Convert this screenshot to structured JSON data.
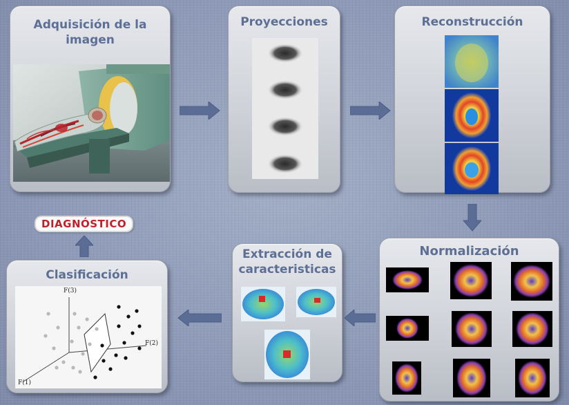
{
  "panels": {
    "adquisicion": {
      "title": "Adquisición de la imagen"
    },
    "proyecciones": {
      "title": "Proyecciones"
    },
    "reconstruccion": {
      "title": "Reconstrucción"
    },
    "normalizacion": {
      "title": "Normalización"
    },
    "extraccion": {
      "title_line1": "Extracción de",
      "title_line2": "caracteristicas"
    },
    "clasificacion": {
      "title": "Clasificación",
      "axis_labels": {
        "f3": "F(3)",
        "f2": "F(2)",
        "f1": "F(1)"
      }
    }
  },
  "diagnostico": {
    "label": "DIAGNÓSTICO"
  },
  "colors": {
    "panel_title": "#5d6f95",
    "arrow": "#5b6d95",
    "diagnostico_text": "#c21f2a",
    "background": "#8f9cb8"
  },
  "icons": [
    "arrow-right-icon",
    "arrow-down-icon",
    "arrow-left-icon",
    "arrow-up-icon"
  ]
}
